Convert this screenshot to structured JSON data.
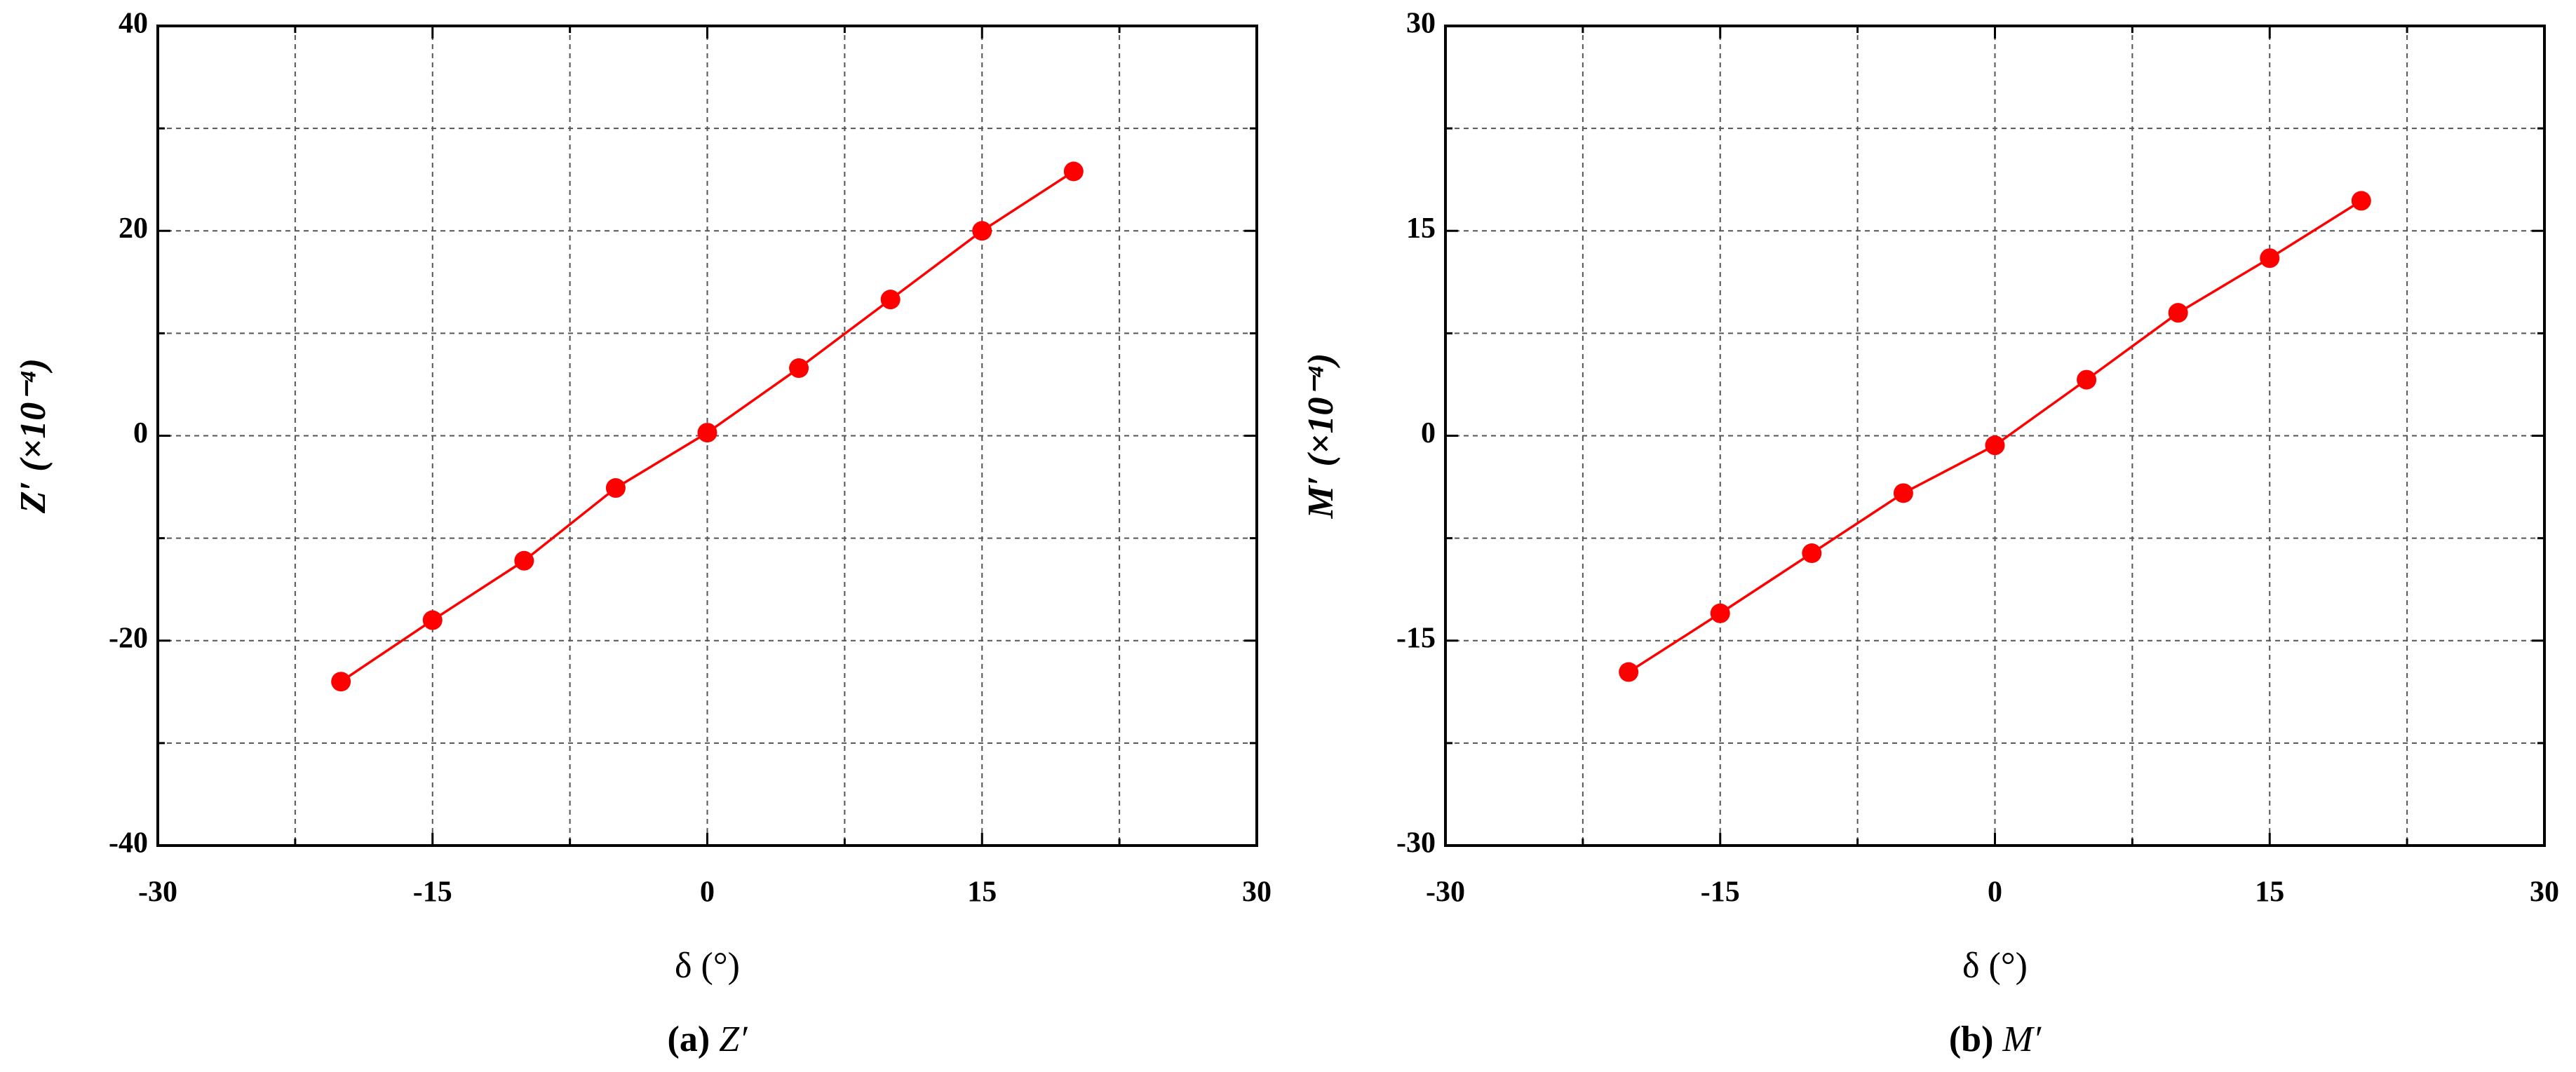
{
  "chart_data": [
    {
      "type": "line",
      "ylabel": "Z′ (×10⁻⁴)",
      "xlabel": "δ (°)",
      "caption": {
        "label": "(a)",
        "text": "Z′"
      },
      "x": [
        -20,
        -15,
        -10,
        -5,
        0,
        5,
        10,
        15,
        20
      ],
      "series": [
        {
          "color": "#ff0000",
          "values": [
            -24,
            -18,
            -12.2,
            -5.1,
            0.3,
            6.6,
            13.3,
            20,
            25.8
          ]
        }
      ],
      "xlim": [
        -30,
        30
      ],
      "xticks": [
        -30,
        -15,
        0,
        15,
        30
      ],
      "xminorticks": [
        -22.5,
        -7.5,
        7.5,
        22.5
      ],
      "ylim": [
        -40,
        40
      ],
      "yticks": [
        -40,
        -20,
        0,
        20,
        40
      ],
      "yminorticks": [
        -30,
        -10,
        10,
        30
      ],
      "grid": true
    },
    {
      "type": "line",
      "ylabel": "M′ (×10⁻⁴)",
      "xlabel": "δ (°)",
      "caption": {
        "label": "(b)",
        "text": "M′"
      },
      "x": [
        -20,
        -15,
        -10,
        -5,
        0,
        5,
        10,
        15,
        20
      ],
      "series": [
        {
          "color": "#ff0000",
          "values": [
            -17.3,
            -13,
            -8.6,
            -4.2,
            -0.7,
            4.1,
            9,
            13,
            17.2
          ]
        }
      ],
      "xlim": [
        -30,
        30
      ],
      "xticks": [
        -30,
        -15,
        0,
        15,
        30
      ],
      "xminorticks": [
        -22.5,
        -7.5,
        7.5,
        22.5
      ],
      "ylim": [
        -30,
        30
      ],
      "yticks": [
        -30,
        -15,
        0,
        15,
        30
      ],
      "yminorticks": [
        -22.5,
        -7.5,
        7.5,
        22.5
      ],
      "grid": true
    }
  ]
}
